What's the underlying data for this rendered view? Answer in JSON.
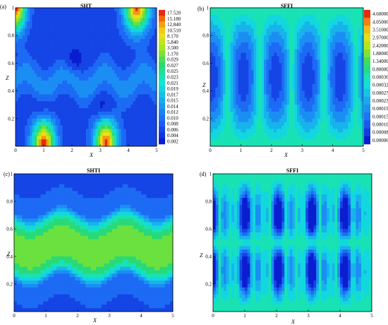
{
  "chart_data": [
    {
      "type": "heatmap",
      "panel": "(a)",
      "title": "SHT",
      "xlabel": "X",
      "ylabel": "Z",
      "xlim": [
        0,
        5
      ],
      "ylim": [
        0,
        1
      ],
      "xticks": [
        "0",
        "1",
        "2",
        "3",
        "4",
        "5"
      ],
      "yticks": [
        "0.2",
        "0.4",
        "0.6",
        "0.8",
        "1"
      ],
      "legend": [
        "17.520",
        "15.180",
        "12.840",
        "10.510",
        "8.170",
        "5.840",
        "3.500",
        "1.170",
        "0.029",
        "0.027",
        "0.025",
        "0.023",
        "0.021",
        "0.019",
        "0.017",
        "0.015",
        "0.014",
        "0.012",
        "0.010",
        "0.008",
        "0.006",
        "0.004",
        "0.002"
      ],
      "legend_placement": "right",
      "colors": [
        "#0a1ecf",
        "#1d5ff4",
        "#1aa3f2",
        "#10e6d8",
        "#2bd96b",
        "#9ee81c",
        "#f2de18",
        "#f58a12",
        "#e82a0c"
      ]
    },
    {
      "type": "heatmap",
      "panel": "(b)",
      "title": "SFFI",
      "xlabel": "X",
      "ylabel": "Z",
      "xlim": [
        0,
        5
      ],
      "ylim": [
        0,
        1
      ],
      "xticks": [
        "0",
        "1",
        "2",
        "3",
        "4",
        "5"
      ],
      "yticks": [
        "0.2",
        "0.4",
        "0.6",
        "0.8",
        "1"
      ],
      "legend": [
        "4.60000",
        "4.05000",
        "3.51000",
        "2.97000",
        "2.42000",
        "1.88000",
        "1.34000",
        "0.80000",
        "0.00036",
        "0.00032",
        "0.00027",
        "0.00023",
        "0.00019",
        "0.00015",
        "0.00010",
        "0.00008",
        "0.00006"
      ],
      "legend_placement": "right"
    },
    {
      "type": "heatmap",
      "panel": "(c)",
      "title": "SHTI",
      "xlabel": "X",
      "ylabel": "Z",
      "xlim": [
        0,
        5
      ],
      "ylim": [
        0,
        1
      ],
      "xticks": [
        "0",
        "1",
        "2",
        "3",
        "4",
        "5"
      ],
      "yticks": [
        "0.2",
        "0.4",
        "0.6",
        "0.8",
        "1"
      ]
    },
    {
      "type": "heatmap",
      "panel": "(d)",
      "title": "SFFI",
      "xlabel": "X",
      "ylabel": "Z",
      "xlim": [
        0,
        5
      ],
      "ylim": [
        0,
        1
      ],
      "xticks": [
        "0",
        "1",
        "2",
        "3",
        "4",
        "5"
      ],
      "yticks": [
        "0.2",
        "0.4",
        "0.6",
        "0.8",
        "1"
      ]
    }
  ]
}
